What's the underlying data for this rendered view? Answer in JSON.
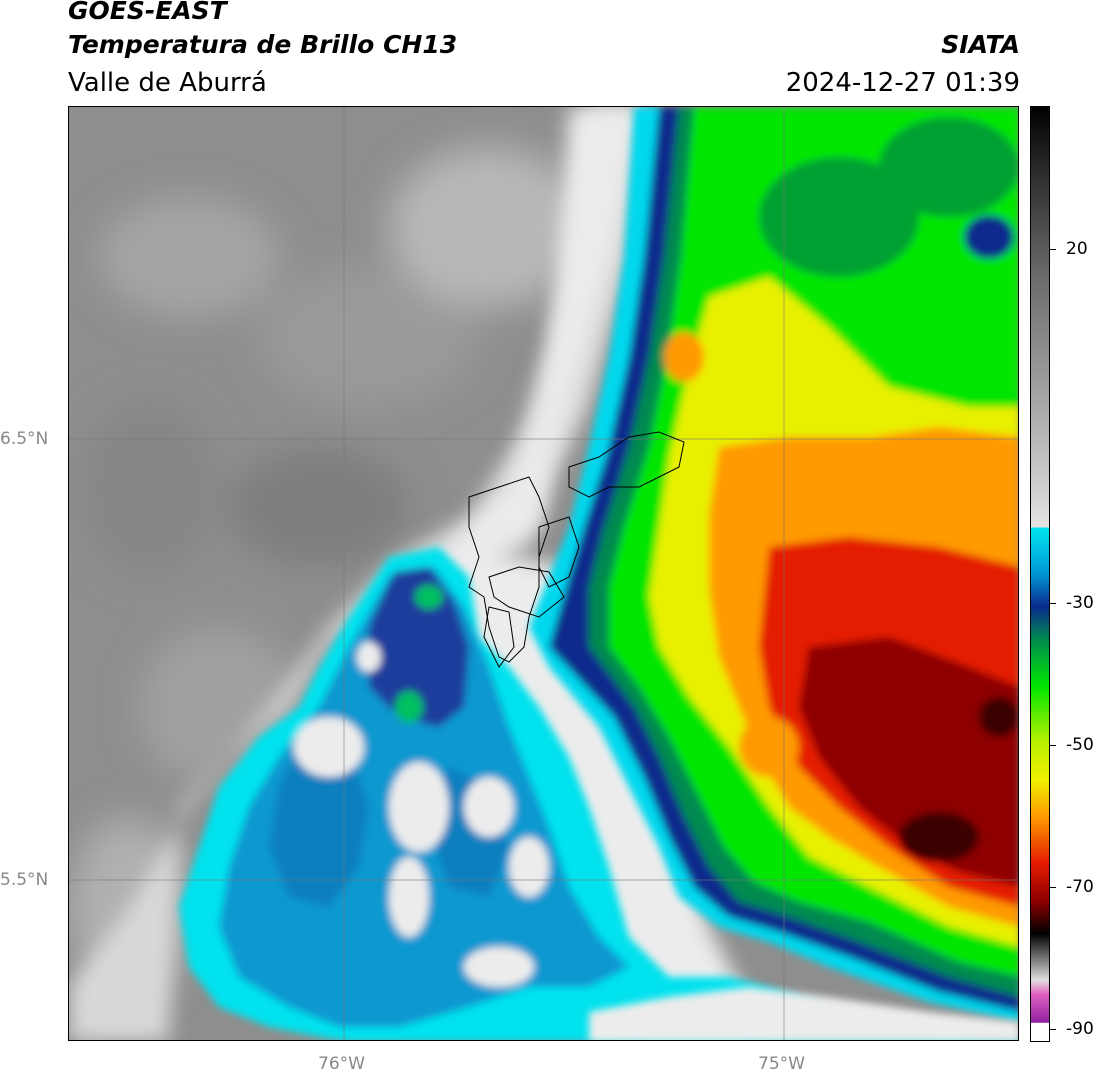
{
  "header": {
    "satellite": "GOES-EAST",
    "product": "Temperatura de Brillo CH13",
    "region": "Valle de Aburrá",
    "brand": "SIATA",
    "datetime": "2024-12-27 01:39"
  },
  "axes": {
    "lat_labels": [
      "6.5°N",
      "5.5°N"
    ],
    "lon_labels": [
      "76°W",
      "75°W"
    ]
  },
  "colorbar": {
    "tick_labels": [
      "20",
      "-30",
      "-50",
      "-70",
      "-90"
    ],
    "colors": {
      "warm_gray": "#8e8e8e",
      "light_gray": "#e6e6e6",
      "cyan": "#00e5f0",
      "blue": "#0088cc",
      "navy": "#0a2a8c",
      "green": "#00e000",
      "yellow": "#f0f000",
      "orange": "#ff9a00",
      "red": "#e01000",
      "dark_red": "#7a0000",
      "black": "#000000",
      "magenta": "#b020b0"
    }
  }
}
